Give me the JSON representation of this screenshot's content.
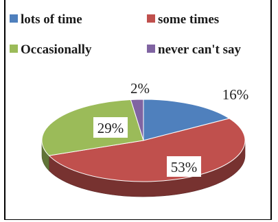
{
  "chart_data": {
    "type": "pie",
    "title": "",
    "legend_position": "top",
    "categories": [
      "lots of time",
      "some times",
      "Occasionally",
      "never can't say"
    ],
    "values": [
      16,
      53,
      29,
      2
    ],
    "data_labels": [
      "16%",
      "53%",
      "29%",
      "2%"
    ],
    "colors": [
      "#4f80bd",
      "#c0504d",
      "#9bbb59",
      "#8064a2"
    ]
  }
}
